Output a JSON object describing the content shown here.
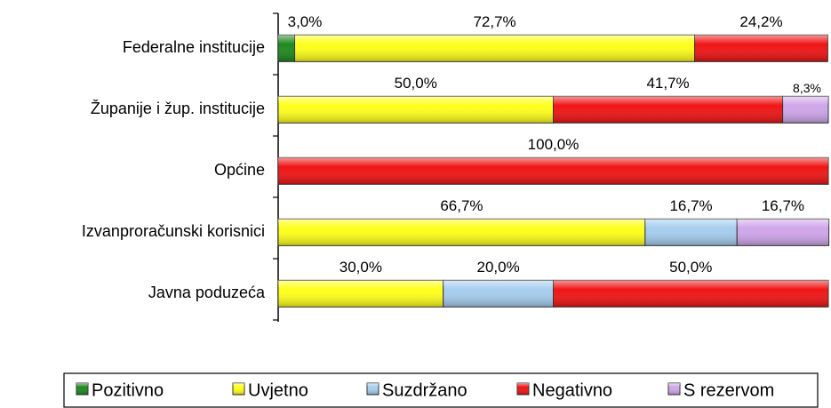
{
  "chart_data": {
    "type": "stacked-bar-horizontal",
    "categories": [
      "Federalne institucije",
      "Županije i žup. institucije",
      "Općine",
      "Izvanproračunski korisnici",
      "Javna poduzeća"
    ],
    "xlim": [
      0,
      100
    ],
    "legend": "bottom",
    "series": [
      {
        "name": "Pozitivno",
        "color": "#1e8a1e",
        "values": [
          3.0,
          null,
          null,
          null,
          null
        ],
        "value_labels": [
          "3,0%",
          null,
          null,
          null,
          null
        ]
      },
      {
        "name": "Uvjetno",
        "color": "#ffff1a",
        "values": [
          72.7,
          50.0,
          null,
          66.7,
          30.0
        ],
        "value_labels": [
          "72,7%",
          "50,0%",
          null,
          "66,7%",
          "30,0%"
        ]
      },
      {
        "name": "Suzdržano",
        "color": "#a6cdee",
        "values": [
          null,
          null,
          null,
          16.7,
          20.0
        ],
        "value_labels": [
          null,
          null,
          null,
          "16,7%",
          "20,0%"
        ]
      },
      {
        "name": "Negativno",
        "color": "#f01414",
        "values": [
          24.2,
          41.7,
          100.0,
          null,
          50.0
        ],
        "value_labels": [
          "24,2%",
          "41,7%",
          "100,0%",
          null,
          "50,0%"
        ]
      },
      {
        "name": "S rezervom",
        "color": "#cfa6ea",
        "values": [
          null,
          8.3,
          null,
          16.7,
          null
        ],
        "value_labels": [
          null,
          "8,3%",
          null,
          "16,7%",
          null
        ]
      }
    ]
  }
}
